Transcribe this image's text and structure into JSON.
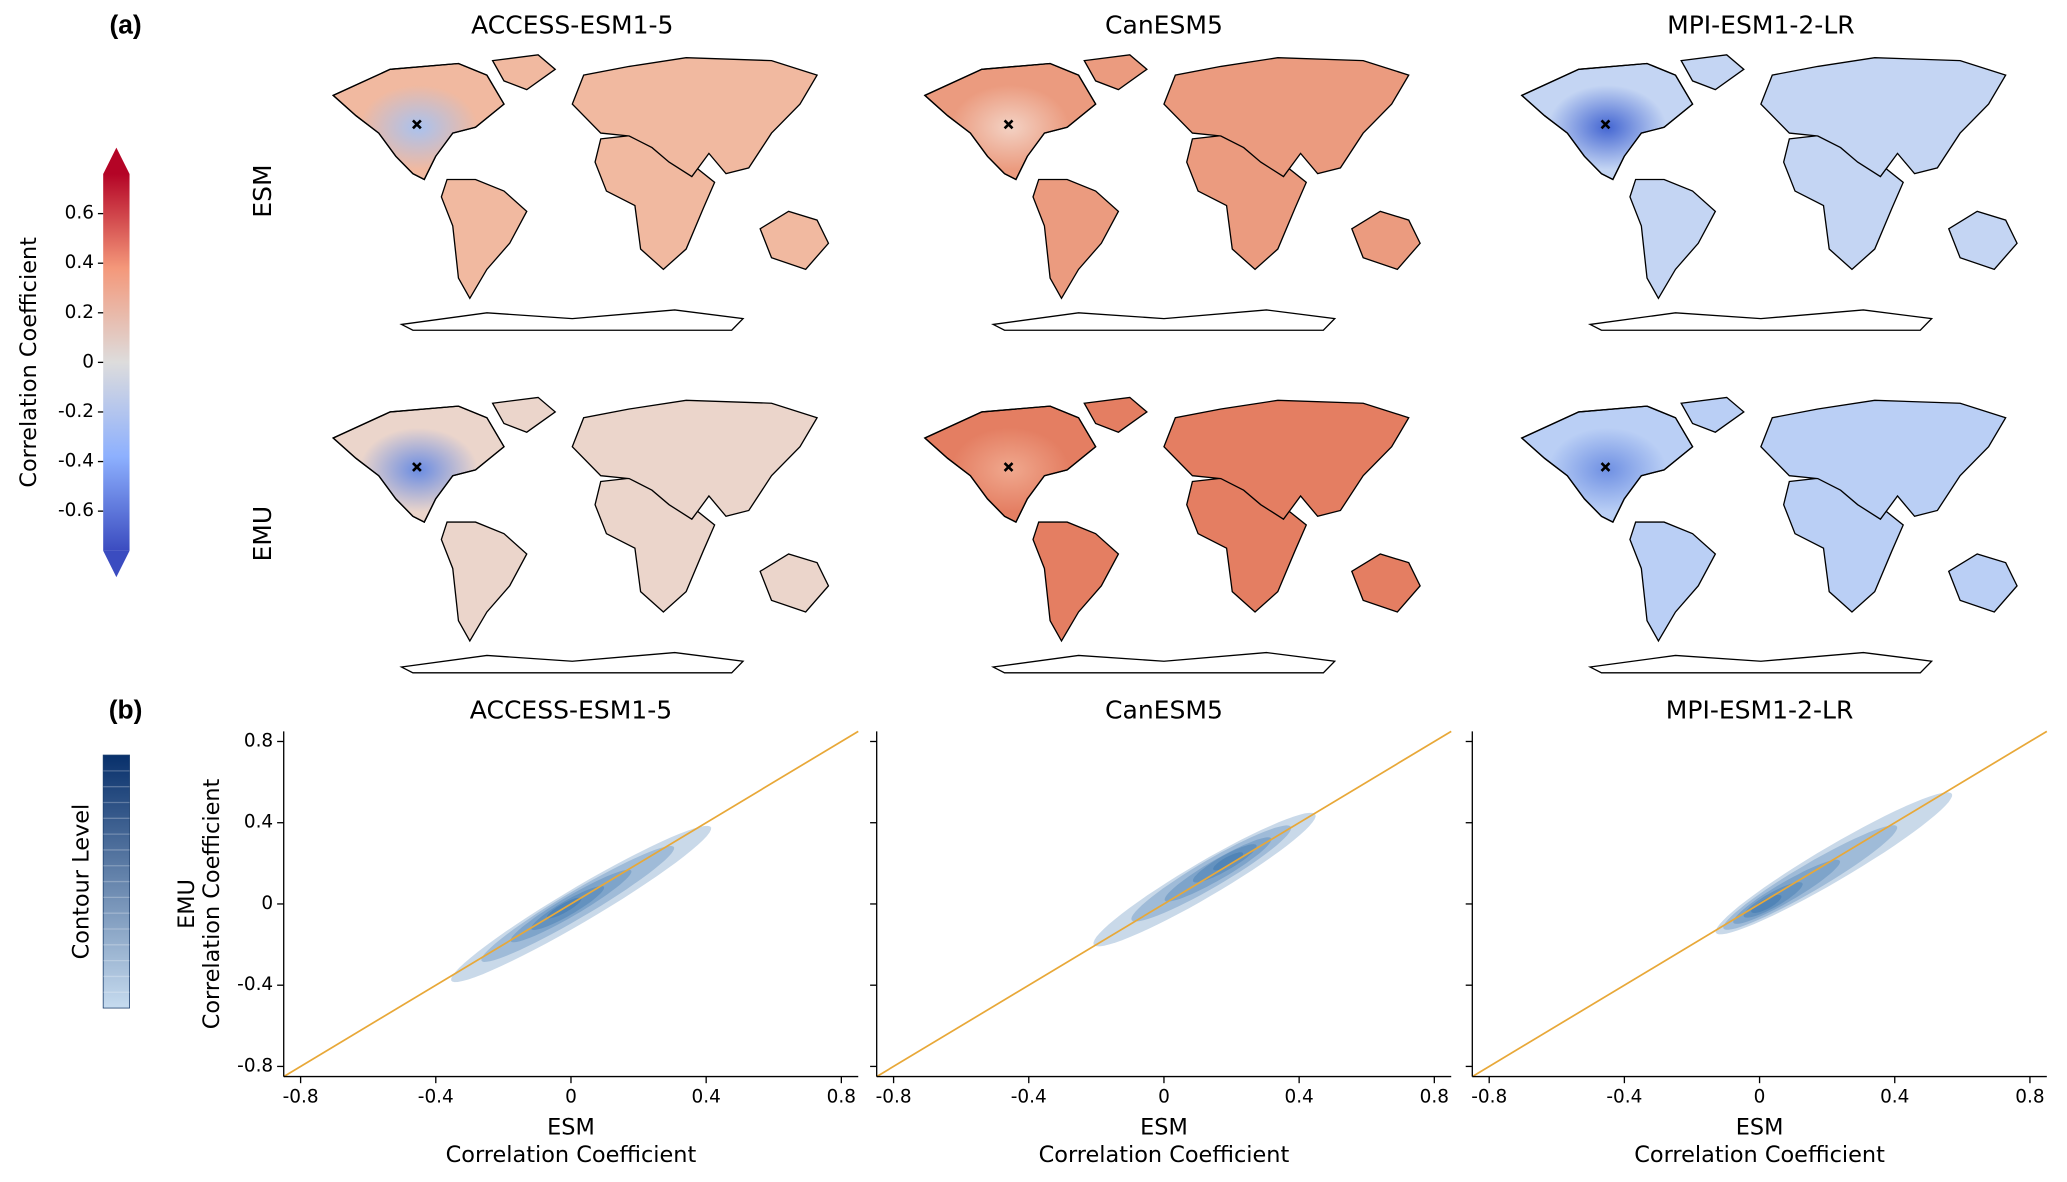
{
  "panel_labels": [
    "(a)",
    "(b)"
  ],
  "chart_data": [
    {
      "type": "colorbar",
      "label": "Correlation Coefficient",
      "ylim": [
        -0.76,
        0.76
      ],
      "yticks": [
        -0.6,
        -0.4,
        -0.2,
        0,
        0.2,
        0.4,
        0.6
      ],
      "colors": [
        "#3b4cc0",
        "#8db0fe",
        "#dddcdc",
        "#f4987a",
        "#b40426"
      ],
      "extend": "both"
    },
    {
      "type": "map",
      "title": "ACCESS-ESM1-5",
      "row_label": "ESM",
      "color": "#f1b9a0",
      "hotspot_color": "#a9c2ef"
    },
    {
      "type": "map",
      "title": "CanESM5",
      "color": "#eb9b7f",
      "hotspot_color": "#f3d2c4"
    },
    {
      "type": "map",
      "title": "MPI-ESM1-2-LR",
      "color": "#c4d5f3",
      "hotspot_color": "#4466d2"
    },
    {
      "type": "map",
      "row_label": "EMU",
      "color": "#ebd5cb",
      "hotspot_color": "#6a8ce2"
    },
    {
      "type": "map",
      "color": "#e47e62",
      "hotspot_color": "#f0a88e"
    },
    {
      "type": "map",
      "color": "#bacff5",
      "hotspot_color": "#6f90e3"
    },
    {
      "type": "colorbar",
      "label": "Contour Level",
      "colors": [
        "#c6dbef",
        "#08306b"
      ]
    },
    {
      "type": "density",
      "title": "ACCESS-ESM1-5",
      "xlabel": [
        "ESM",
        "Correlation Coefficient"
      ],
      "ylabel": [
        "EMU",
        "Correlation Coefficient"
      ],
      "xlim": [
        -0.85,
        0.85
      ],
      "ylim": [
        -0.85,
        0.85
      ],
      "xticks": [
        -0.8,
        -0.4,
        0,
        0.4,
        0.8
      ],
      "yticks": [
        -0.8,
        -0.4,
        0,
        0.4,
        0.8
      ],
      "show_ytick_labels": true,
      "line_color": "#e8a838",
      "color": "#08519c",
      "contours": [
        {
          "x": 0.03,
          "y": 0.0,
          "half_length": 0.54,
          "half_width": 0.07
        },
        {
          "x": 0.02,
          "y": 0.0,
          "half_length": 0.4,
          "half_width": 0.055
        },
        {
          "x": 0.0,
          "y": -0.01,
          "half_length": 0.25,
          "half_width": 0.04
        },
        {
          "x": -0.01,
          "y": -0.02,
          "half_length": 0.15,
          "half_width": 0.03
        },
        {
          "x": -0.02,
          "y": -0.02,
          "half_length": 0.07,
          "half_width": 0.018
        }
      ]
    },
    {
      "type": "density",
      "title": "CanESM5",
      "xlabel": [
        "ESM",
        "Correlation Coefficient"
      ],
      "xlim": [
        -0.85,
        0.85
      ],
      "ylim": [
        -0.85,
        0.85
      ],
      "xticks": [
        -0.8,
        -0.4,
        0,
        0.4,
        0.8
      ],
      "yticks": [
        -0.8,
        -0.4,
        0,
        0.4,
        0.8
      ],
      "show_ytick_labels": false,
      "line_color": "#e8a838",
      "color": "#08519c",
      "contours": [
        {
          "x": 0.12,
          "y": 0.12,
          "half_length": 0.46,
          "half_width": 0.07
        },
        {
          "x": 0.14,
          "y": 0.15,
          "half_length": 0.33,
          "half_width": 0.055
        },
        {
          "x": 0.16,
          "y": 0.17,
          "half_length": 0.22,
          "half_width": 0.04
        },
        {
          "x": 0.18,
          "y": 0.2,
          "half_length": 0.13,
          "half_width": 0.03
        },
        {
          "x": 0.19,
          "y": 0.21,
          "half_length": 0.06,
          "half_width": 0.018
        }
      ]
    },
    {
      "type": "density",
      "title": "MPI-ESM1-2-LR",
      "xlabel": [
        "ESM",
        "Correlation Coefficient"
      ],
      "xlim": [
        -0.85,
        0.85
      ],
      "ylim": [
        -0.85,
        0.85
      ],
      "xticks": [
        -0.8,
        -0.4,
        0,
        0.4,
        0.8
      ],
      "yticks": [
        -0.8,
        -0.4,
        0,
        0.4,
        0.8
      ],
      "show_ytick_labels": false,
      "line_color": "#e8a838",
      "color": "#08519c",
      "contours": [
        {
          "x": 0.22,
          "y": 0.2,
          "half_length": 0.49,
          "half_width": 0.07
        },
        {
          "x": 0.15,
          "y": 0.13,
          "half_length": 0.36,
          "half_width": 0.055
        },
        {
          "x": 0.08,
          "y": 0.06,
          "half_length": 0.22,
          "half_width": 0.04
        },
        {
          "x": 0.04,
          "y": 0.02,
          "half_length": 0.12,
          "half_width": 0.03
        },
        {
          "x": 0.02,
          "y": 0.0,
          "half_length": 0.06,
          "half_width": 0.02
        }
      ]
    }
  ]
}
